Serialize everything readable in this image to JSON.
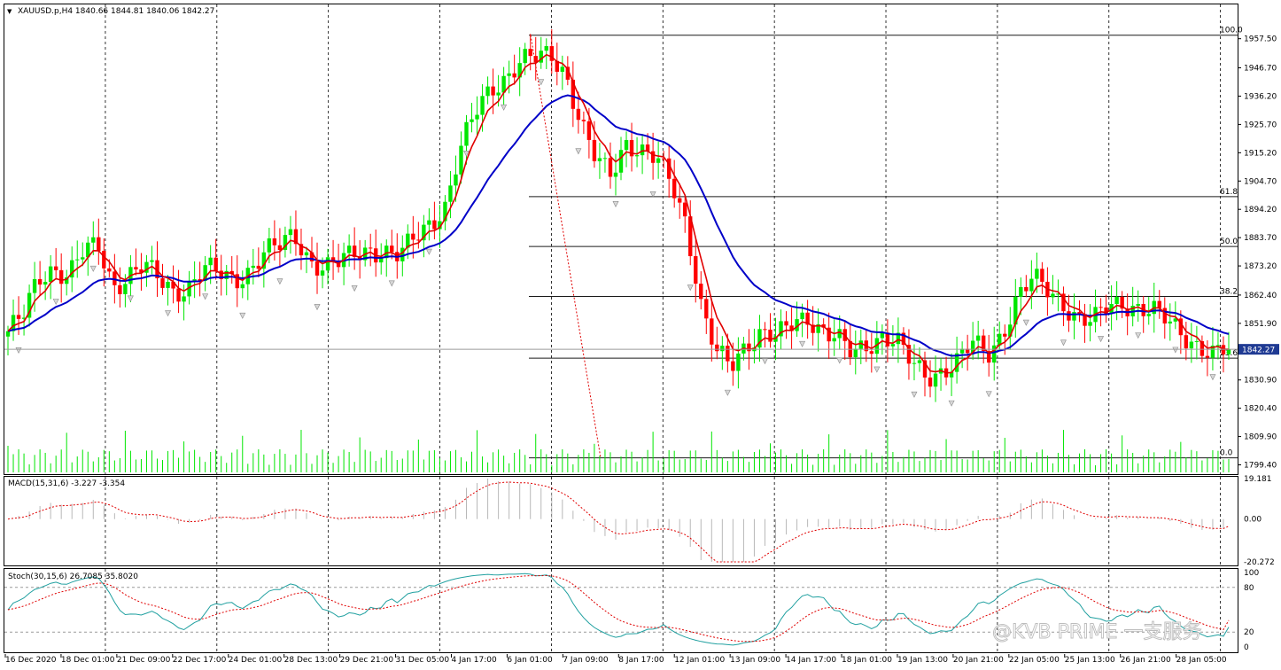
{
  "header": {
    "symbol_line": "XAUUSD.p,H4  1840.66 1844.81 1840.06 1842.27",
    "macd_label": "MACD(15,31,6) -3.227 -3.354",
    "stoch_label": "Stoch(30,15,6) 26.7085 35.8020"
  },
  "watermark": "@KVB PRIME 一支服务",
  "colors": {
    "bull": "#00e600",
    "bear": "#ff0000",
    "ma_fast": "#e00000",
    "ma_slow": "#0000c8",
    "stoch_main": "#20a0a0",
    "stoch_signal": "#e00000",
    "grid": "#000000",
    "price_tag_bg": "#1f3a93"
  },
  "chart_data": [
    {
      "type": "candlestick",
      "symbol": "XAUUSD.p",
      "timeframe": "H4",
      "ylim": [
        1799.9,
        1962.0
      ],
      "y_ticks": [
        1957.5,
        1946.7,
        1936.2,
        1925.7,
        1915.2,
        1904.7,
        1894.2,
        1883.7,
        1873.2,
        1862.4,
        1851.9,
        1841.4,
        1830.9,
        1820.4,
        1809.9,
        1799.4
      ],
      "y_tick_labels": [
        "1957.50",
        "1946.70",
        "1936.20",
        "1925.70",
        "1915.20",
        "1904.70",
        "1894.20",
        "1883.70",
        "1873.20",
        "1862.40",
        "1851.90",
        "1841.40",
        "1830.90",
        "1820.40",
        "1809.90",
        "1799.40"
      ],
      "x_labels": [
        "16 Dec 2020",
        "18 Dec 01:00",
        "21 Dec 09:00",
        "22 Dec 17:00",
        "24 Dec 01:00",
        "28 Dec 13:00",
        "29 Dec 21:00",
        "31 Dec 05:00",
        "4 Jan 17:00",
        "6 Jan 01:00",
        "7 Jan 09:00",
        "8 Jan 17:00",
        "12 Jan 01:00",
        "13 Jan 09:00",
        "14 Jan 17:00",
        "18 Jan 01:00",
        "19 Jan 13:00",
        "20 Jan 21:00",
        "22 Jan 05:00",
        "25 Jan 13:00",
        "26 Jan 21:00",
        "28 Jan 05:00"
      ],
      "current_price": "1842.27",
      "current_value": 1842.27,
      "key_prices": [
        1849,
        1854,
        1868,
        1873,
        1870,
        1878,
        1880,
        1866,
        1870,
        1873,
        1868,
        1864,
        1866,
        1872,
        1870,
        1868,
        1872,
        1878,
        1880,
        1885,
        1876,
        1872,
        1874,
        1878,
        1880,
        1878,
        1876,
        1884,
        1890,
        1895,
        1915,
        1930,
        1940,
        1943,
        1948,
        1950,
        1953,
        1945,
        1925,
        1912,
        1908,
        1920,
        1915,
        1912,
        1905,
        1890,
        1858,
        1840,
        1836,
        1845,
        1849,
        1846,
        1851,
        1855,
        1850,
        1846,
        1840,
        1844,
        1848,
        1845,
        1836,
        1832,
        1835,
        1838,
        1844,
        1840,
        1849,
        1862,
        1868,
        1864,
        1860,
        1854,
        1852,
        1858,
        1860,
        1858,
        1856,
        1852,
        1848,
        1844,
        1840,
        1842
      ],
      "fibonacci": {
        "levels": [
          "100.0",
          "61.8",
          "50.0",
          "38.2",
          "23.6",
          "0.0"
        ],
        "high": 1958.8,
        "low": 1802.0
      }
    },
    {
      "type": "histogram",
      "name": "MACD(15,31,6)",
      "main": -3.227,
      "signal": -3.354,
      "ylim": [
        -20.272,
        19.181
      ],
      "y_tick_labels": [
        "19.181",
        "0.00",
        "-20.272"
      ]
    },
    {
      "type": "line",
      "name": "Stoch(30,15,6)",
      "main": 26.7085,
      "signal": 35.802,
      "ylim": [
        0,
        100
      ],
      "y_tick_labels": [
        "100",
        "80",
        "20",
        "0"
      ]
    }
  ]
}
